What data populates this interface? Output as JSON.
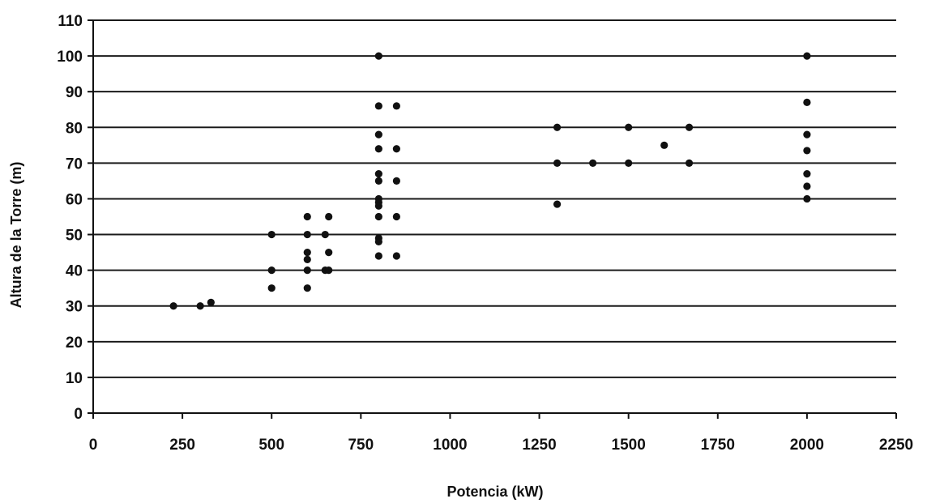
{
  "chart_data": {
    "type": "scatter",
    "title": "",
    "xlabel": "Potencia (kW)",
    "ylabel": "Altura de la Torre (m)",
    "xlim": [
      0,
      2250
    ],
    "ylim": [
      0,
      110
    ],
    "xticks": [
      0,
      250,
      500,
      750,
      1000,
      1250,
      1500,
      1750,
      2000,
      2250
    ],
    "yticks": [
      0,
      10,
      20,
      30,
      40,
      50,
      60,
      70,
      80,
      90,
      100,
      110
    ],
    "grid": "horizontal",
    "legend": "none",
    "marker_color": "#111111",
    "series": [
      {
        "points": [
          [
            225,
            30
          ],
          [
            300,
            30
          ],
          [
            330,
            31
          ],
          [
            500,
            50
          ],
          [
            500,
            40
          ],
          [
            500,
            35
          ],
          [
            600,
            55
          ],
          [
            600,
            50
          ],
          [
            600,
            45
          ],
          [
            600,
            43
          ],
          [
            600,
            40
          ],
          [
            600,
            35
          ],
          [
            650,
            50
          ],
          [
            650,
            40
          ],
          [
            660,
            55
          ],
          [
            660,
            45
          ],
          [
            660,
            40
          ],
          [
            800,
            100
          ],
          [
            800,
            86
          ],
          [
            800,
            78
          ],
          [
            800,
            74
          ],
          [
            800,
            67
          ],
          [
            800,
            65
          ],
          [
            800,
            60
          ],
          [
            800,
            59
          ],
          [
            800,
            58
          ],
          [
            800,
            55
          ],
          [
            800,
            49
          ],
          [
            800,
            48
          ],
          [
            800,
            44
          ],
          [
            850,
            86
          ],
          [
            850,
            74
          ],
          [
            850,
            65
          ],
          [
            850,
            55
          ],
          [
            850,
            44
          ],
          [
            1300,
            80
          ],
          [
            1300,
            70
          ],
          [
            1300,
            58.5
          ],
          [
            1400,
            70
          ],
          [
            1500,
            80
          ],
          [
            1500,
            70
          ],
          [
            1600,
            75
          ],
          [
            1670,
            80
          ],
          [
            1670,
            70
          ],
          [
            2000,
            100
          ],
          [
            2000,
            87
          ],
          [
            2000,
            78
          ],
          [
            2000,
            73.5
          ],
          [
            2000,
            67
          ],
          [
            2000,
            63.5
          ],
          [
            2000,
            60
          ]
        ]
      }
    ]
  }
}
